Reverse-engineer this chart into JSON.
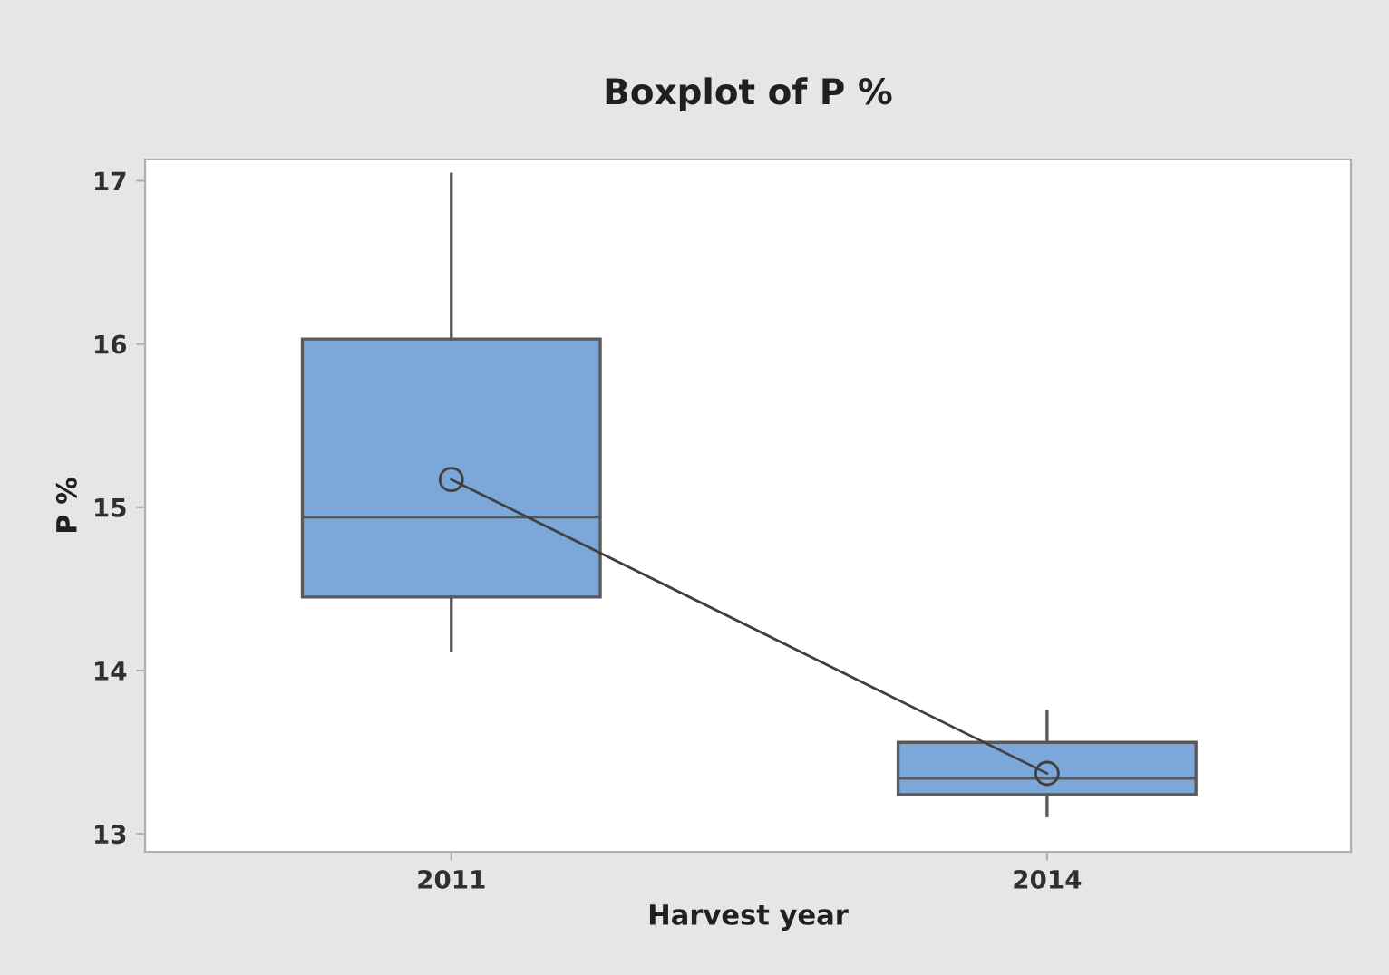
{
  "chart_data": {
    "type": "box",
    "title": "Boxplot of P %",
    "xlabel": "Harvest year",
    "ylabel": "P %",
    "categories": [
      "2011",
      "2014"
    ],
    "boxes": [
      {
        "low": 14.12,
        "q1": 14.45,
        "median": 14.94,
        "q3": 16.03,
        "high": 17.04
      },
      {
        "low": 13.11,
        "q1": 13.24,
        "median": 13.34,
        "q3": 13.56,
        "high": 13.75
      }
    ],
    "color": "#7ba7d9",
    "series": [
      {
        "type": "line",
        "values": [
          15.17,
          13.37
        ],
        "color": "#404040",
        "marker": "circle"
      }
    ],
    "ylim": [
      12.89,
      17.13
    ],
    "yticks": [
      13,
      14,
      15,
      16,
      17
    ],
    "grid": false,
    "legend": false
  }
}
